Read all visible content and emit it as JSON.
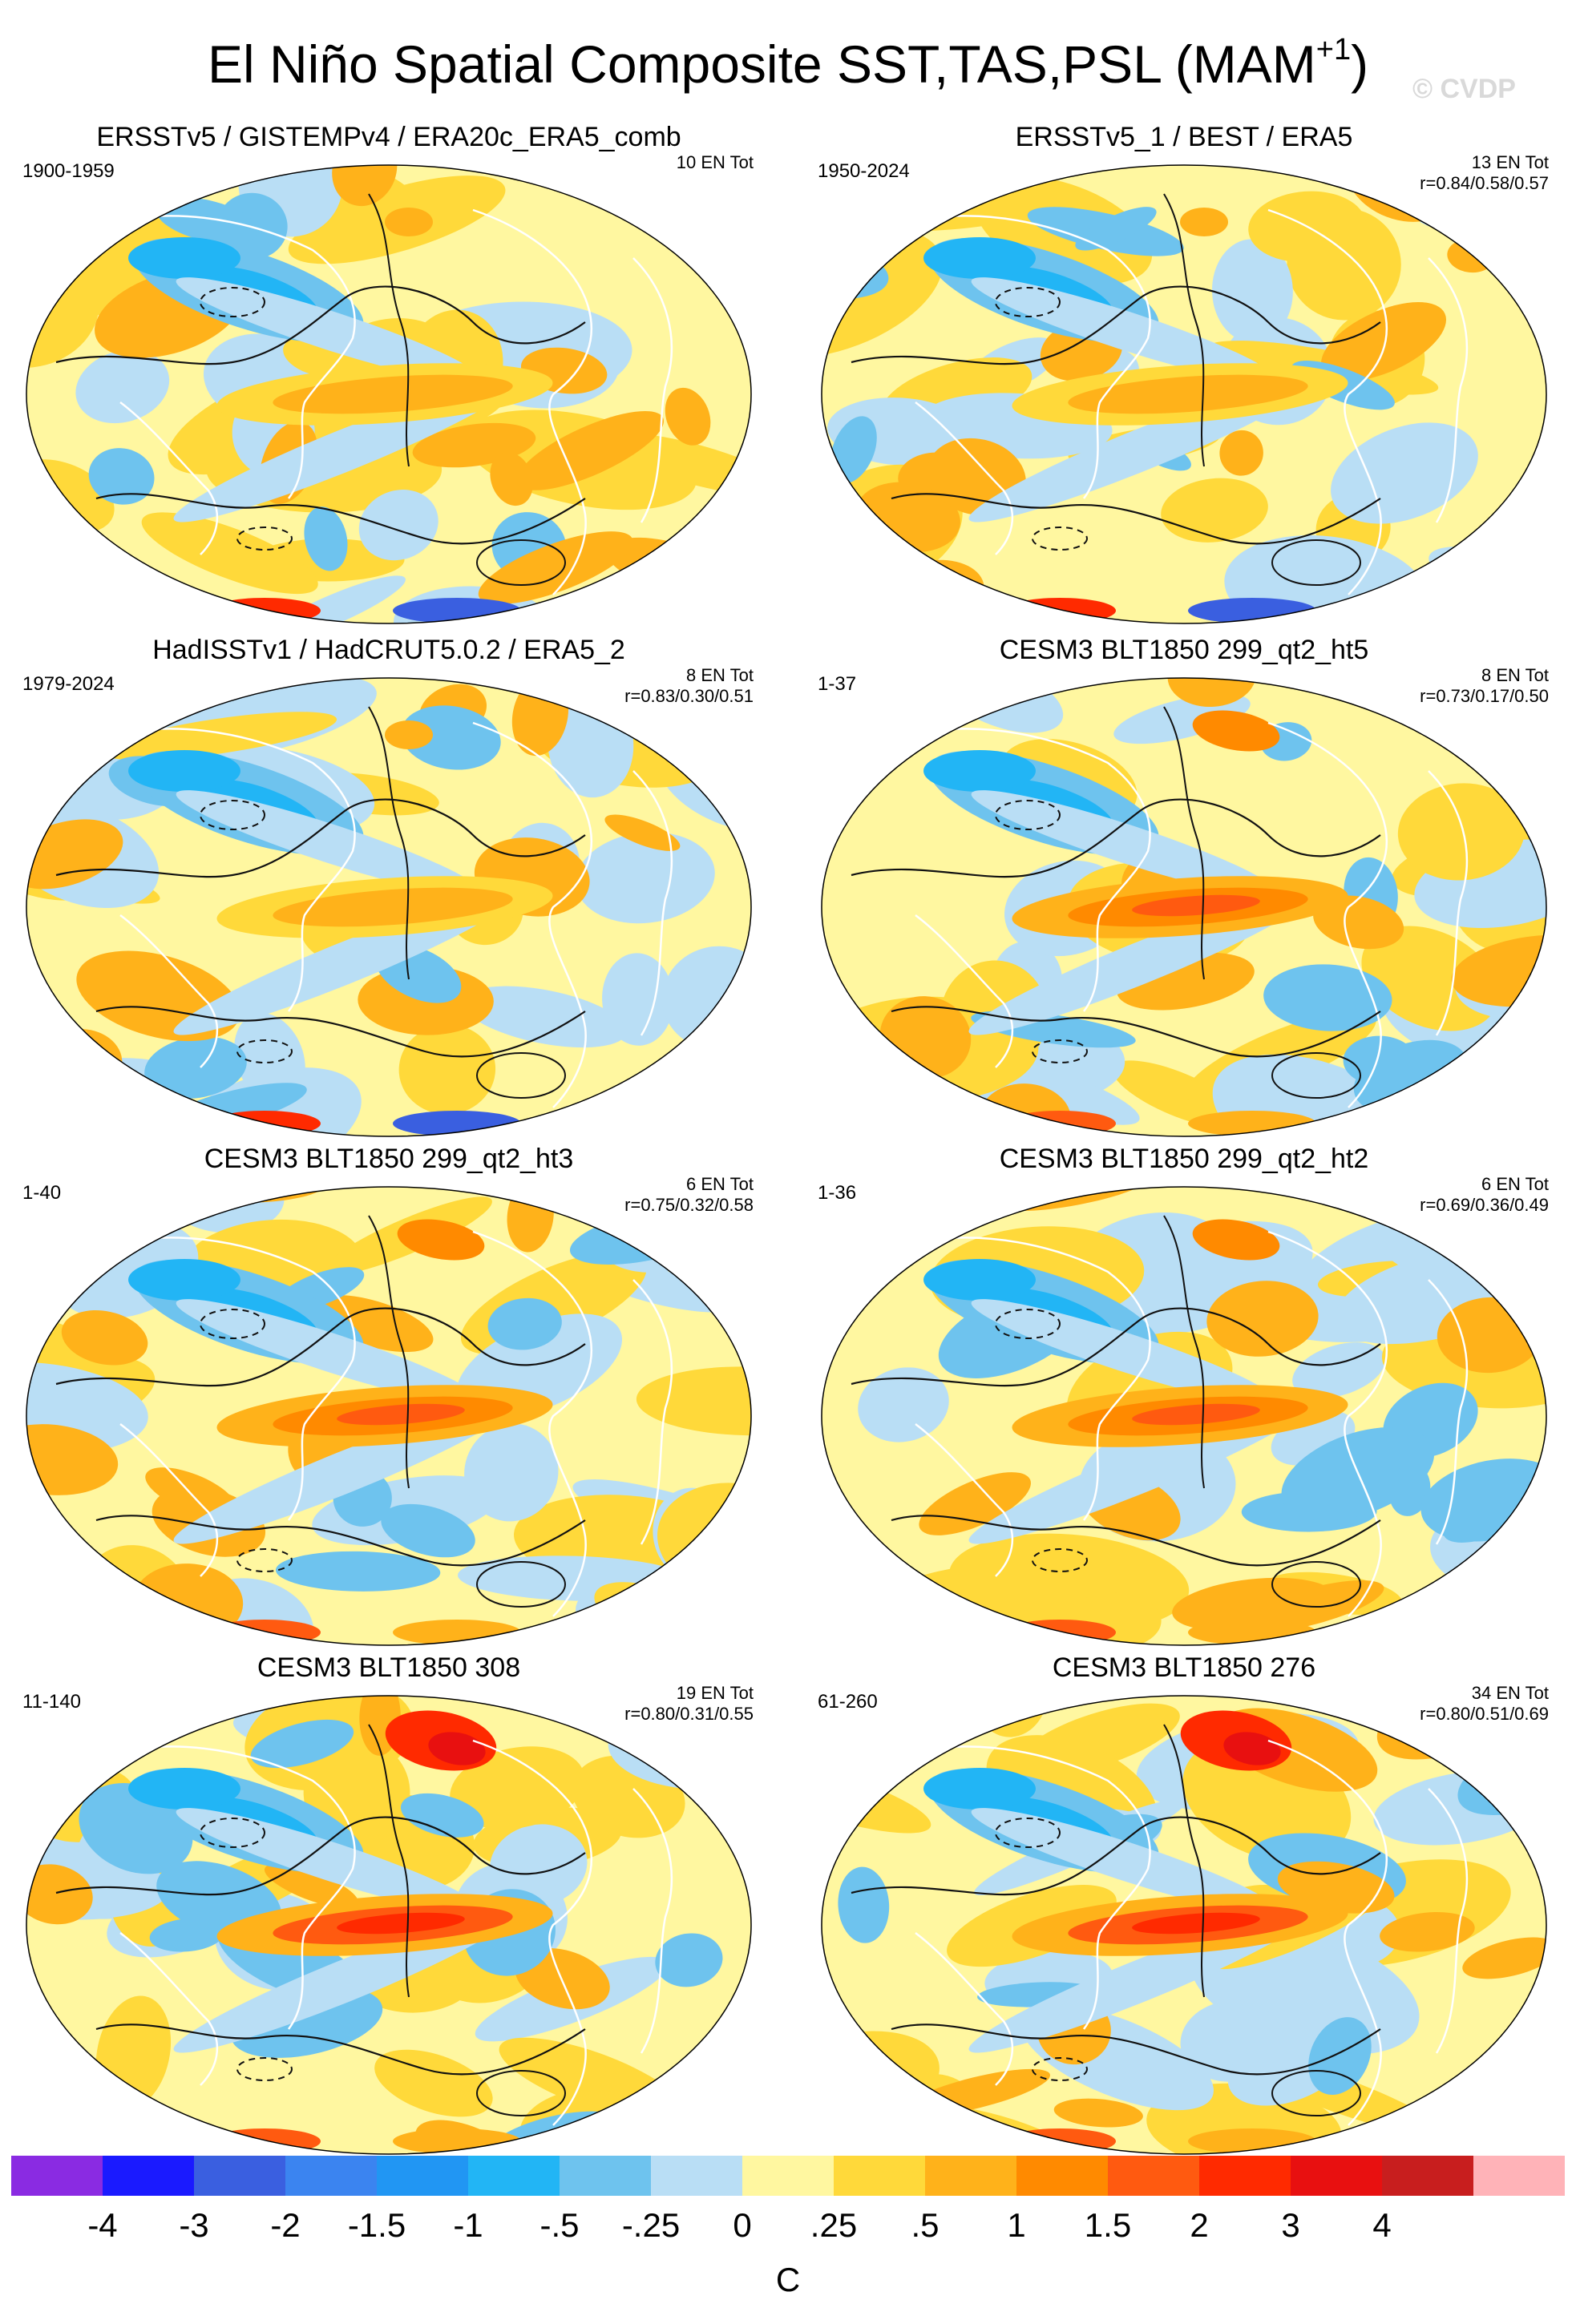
{
  "title": "El Niño Spatial Composite SST,TAS,PSL (MAM",
  "title_sup": "+1",
  "title_close": ")",
  "watermark": "© CVDP",
  "palette": {
    "land_gap": "#ffffff",
    "contour": "#111111",
    "coast": "#ffffff"
  },
  "panels": [
    {
      "title": "ERSSTv5 / GISTEMPv4 / ERA20c_ERA5_comb",
      "period": "1900-1959",
      "en_tot": "10 EN Tot",
      "r": "",
      "tone": "obs"
    },
    {
      "title": "ERSSTv5_1 / BEST / ERA5",
      "period": "1950-2024",
      "en_tot": "13 EN Tot",
      "r": "r=0.84/0.58/0.57",
      "tone": "obs"
    },
    {
      "title": "HadISSTv1 / HadCRUT5.0.2 / ERA5_2",
      "period": "1979-2024",
      "en_tot": "8 EN Tot",
      "r": "r=0.83/0.30/0.51",
      "tone": "obs"
    },
    {
      "title": "CESM3 BLT1850 299_qt2_ht5",
      "period": "1-37",
      "en_tot": "8 EN Tot",
      "r": "r=0.73/0.17/0.50",
      "tone": "model"
    },
    {
      "title": "CESM3 BLT1850 299_qt2_ht3",
      "period": "1-40",
      "en_tot": "6 EN Tot",
      "r": "r=0.75/0.32/0.58",
      "tone": "model"
    },
    {
      "title": "CESM3 BLT1850 299_qt2_ht2",
      "period": "1-36",
      "en_tot": "6 EN Tot",
      "r": "r=0.69/0.36/0.49",
      "tone": "model"
    },
    {
      "title": "CESM3 BLT1850 308",
      "period": "11-140",
      "en_tot": "19 EN Tot",
      "r": "r=0.80/0.31/0.55",
      "tone": "strong"
    },
    {
      "title": "CESM3 BLT1850 276",
      "period": "61-260",
      "en_tot": "34 EN Tot",
      "r": "r=0.80/0.51/0.69",
      "tone": "strong"
    }
  ],
  "colorbar": {
    "colors": [
      "#8a2be2",
      "#1a1aff",
      "#3a5fe0",
      "#3b84f0",
      "#2196f3",
      "#22b5f5",
      "#6ec3ee",
      "#b9def5",
      "#fff7a0",
      "#ffd93a",
      "#ffb21a",
      "#ff8a00",
      "#ff5a10",
      "#ff2a00",
      "#e81010",
      "#c81e1e",
      "#ffb3b8"
    ],
    "labels": [
      "-4",
      "-3",
      "-2",
      "-1.5",
      "-1",
      "-.5",
      "-.25",
      "0",
      ".25",
      ".5",
      "1",
      "1.5",
      "2",
      "3",
      "4"
    ],
    "units": "C"
  }
}
